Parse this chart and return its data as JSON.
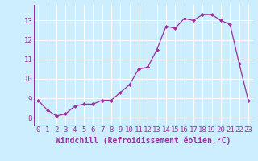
{
  "x": [
    0,
    1,
    2,
    3,
    4,
    5,
    6,
    7,
    8,
    9,
    10,
    11,
    12,
    13,
    14,
    15,
    16,
    17,
    18,
    19,
    20,
    21,
    22,
    23
  ],
  "y": [
    8.9,
    8.4,
    8.1,
    8.2,
    8.6,
    8.7,
    8.7,
    8.9,
    8.9,
    9.3,
    9.7,
    10.5,
    10.6,
    11.5,
    12.7,
    12.6,
    13.1,
    13.0,
    13.3,
    13.3,
    13.0,
    12.8,
    10.8,
    8.9
  ],
  "line_color": "#9b30a0",
  "marker": "D",
  "marker_size": 2.0,
  "bg_color": "#cceeff",
  "grid_color": "#ffffff",
  "xlabel": "Windchill (Refroidissement éolien,°C)",
  "xlabel_fontsize": 7,
  "ylabel_ticks": [
    8,
    9,
    10,
    11,
    12,
    13
  ],
  "xtick_labels": [
    "0",
    "1",
    "2",
    "3",
    "4",
    "5",
    "6",
    "7",
    "8",
    "9",
    "10",
    "11",
    "12",
    "13",
    "14",
    "15",
    "16",
    "17",
    "18",
    "19",
    "20",
    "21",
    "22",
    "23"
  ],
  "ylim": [
    7.6,
    13.8
  ],
  "xlim": [
    -0.5,
    23.5
  ],
  "tick_fontsize": 6.5,
  "tick_color": "#9b30a0"
}
